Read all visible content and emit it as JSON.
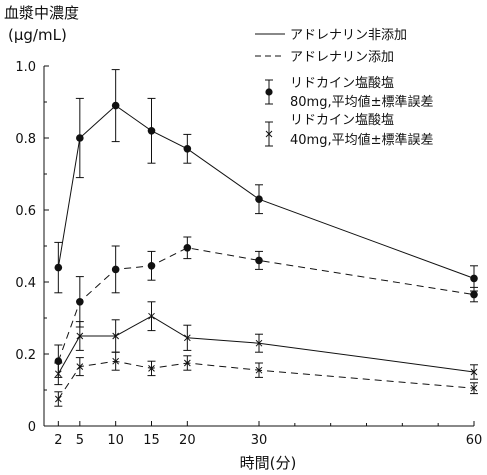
{
  "chart_data": {
    "type": "line",
    "ylabel_line1": "血漿中濃度",
    "ylabel_line2": "(μg/mL)",
    "xlabel": "時間(分)",
    "x": [
      2,
      5,
      10,
      15,
      20,
      30,
      60
    ],
    "x_ticks": [
      "2",
      "5",
      "10",
      "15",
      "20",
      "30",
      "60"
    ],
    "xlim": [
      0,
      60
    ],
    "ylim": [
      0,
      1.0
    ],
    "y_ticks": [
      "0",
      "0.2",
      "0.4",
      "0.6",
      "0.8",
      "1.0"
    ],
    "line_styles": {
      "solid": "アドレナリン非添加",
      "dashed": "アドレナリン添加"
    },
    "marker_groups": [
      {
        "marker": "dot",
        "line1": "リドカイン塩酸塩",
        "line2": "80mg,平均値±標準誤差"
      },
      {
        "marker": "cross",
        "line1": "リドカイン塩酸塩",
        "line2": "40mg,平均値±標準誤差"
      }
    ],
    "series": [
      {
        "dose": "80mg",
        "adrenaline": "非添加",
        "marker": "dot",
        "line": "solid",
        "values": [
          0.44,
          0.8,
          0.89,
          0.82,
          0.77,
          0.63,
          0.41
        ],
        "error": [
          0.07,
          0.11,
          0.1,
          0.09,
          0.04,
          0.04,
          0.035
        ]
      },
      {
        "dose": "80mg",
        "adrenaline": "添加",
        "marker": "dot",
        "line": "dashed",
        "values": [
          0.18,
          0.345,
          0.435,
          0.445,
          0.495,
          0.46,
          0.365
        ],
        "error": [
          0.045,
          0.07,
          0.065,
          0.04,
          0.03,
          0.025,
          0.02
        ]
      },
      {
        "dose": "40mg",
        "adrenaline": "非添加",
        "marker": "cross",
        "line": "solid",
        "values": [
          0.145,
          0.25,
          0.25,
          0.305,
          0.245,
          0.23,
          0.15
        ],
        "error": [
          0.03,
          0.04,
          0.045,
          0.04,
          0.035,
          0.025,
          0.02
        ]
      },
      {
        "dose": "40mg",
        "adrenaline": "添加",
        "marker": "cross",
        "line": "dashed",
        "values": [
          0.075,
          0.165,
          0.18,
          0.16,
          0.175,
          0.155,
          0.105
        ],
        "error": [
          0.02,
          0.025,
          0.025,
          0.02,
          0.02,
          0.02,
          0.015
        ]
      }
    ],
    "colors": {
      "ink": "#111111"
    }
  }
}
